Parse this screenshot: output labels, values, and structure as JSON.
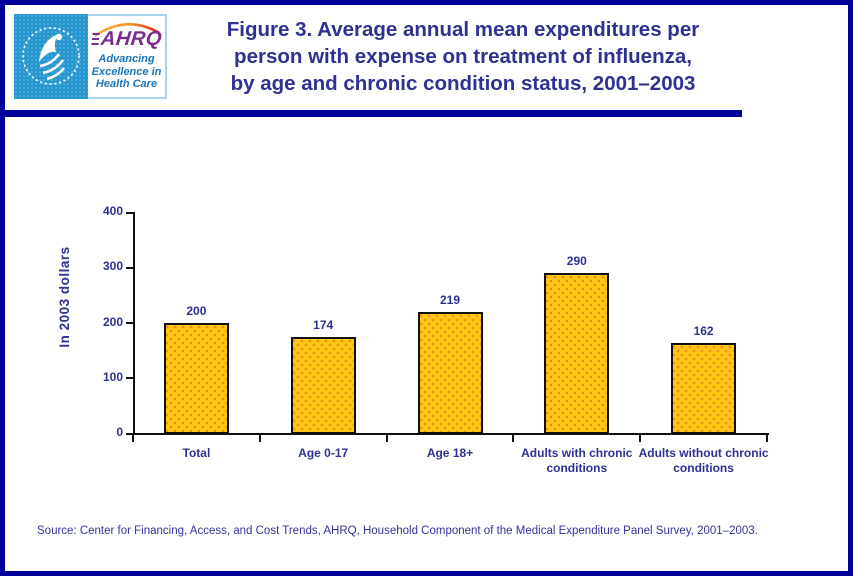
{
  "header": {
    "logo": {
      "hhs_seal": "hhs-department-seal",
      "ahrq_acronym": "AHRQ",
      "tagline_lines": [
        "Advancing",
        "Excellence in",
        "Health Care"
      ]
    },
    "title_lines": [
      "Figure 3. Average annual mean expenditures per",
      "person with expense on treatment of influenza,",
      "by age and chronic condition status, 2001–2003"
    ]
  },
  "chart_data": {
    "type": "bar",
    "title": "Figure 3. Average annual mean expenditures per person with expense on treatment of influenza, by age and chronic condition status, 2001–2003",
    "categories": [
      "Total",
      "Age 0-17",
      "Age 18+",
      "Adults with chronic conditions",
      "Adults without chronic conditions"
    ],
    "values": [
      200,
      174,
      219,
      290,
      162
    ],
    "xlabel": "",
    "ylabel": "In 2003 dollars",
    "ylim": [
      0,
      400
    ],
    "yticks": [
      0,
      100,
      200,
      300,
      400
    ],
    "grid": false,
    "legend": false,
    "bar_fill": "#FFC613",
    "bar_dot": "#EE8A1E",
    "bar_border": "#101010",
    "label_color": "#2E3192"
  },
  "source_note": "Source: Center for Financing, Access, and Cost Trends, AHRQ, Household Component of the Medical Expenditure Panel Survey, 2001–2003.",
  "colors": {
    "frame_border": "#000099",
    "divider": "#000099",
    "title_text": "#2E3192",
    "hhs_blue": "#2596CE",
    "ahrq_purple": "#7D2B8B",
    "tagline_blue": "#1B75BC"
  }
}
